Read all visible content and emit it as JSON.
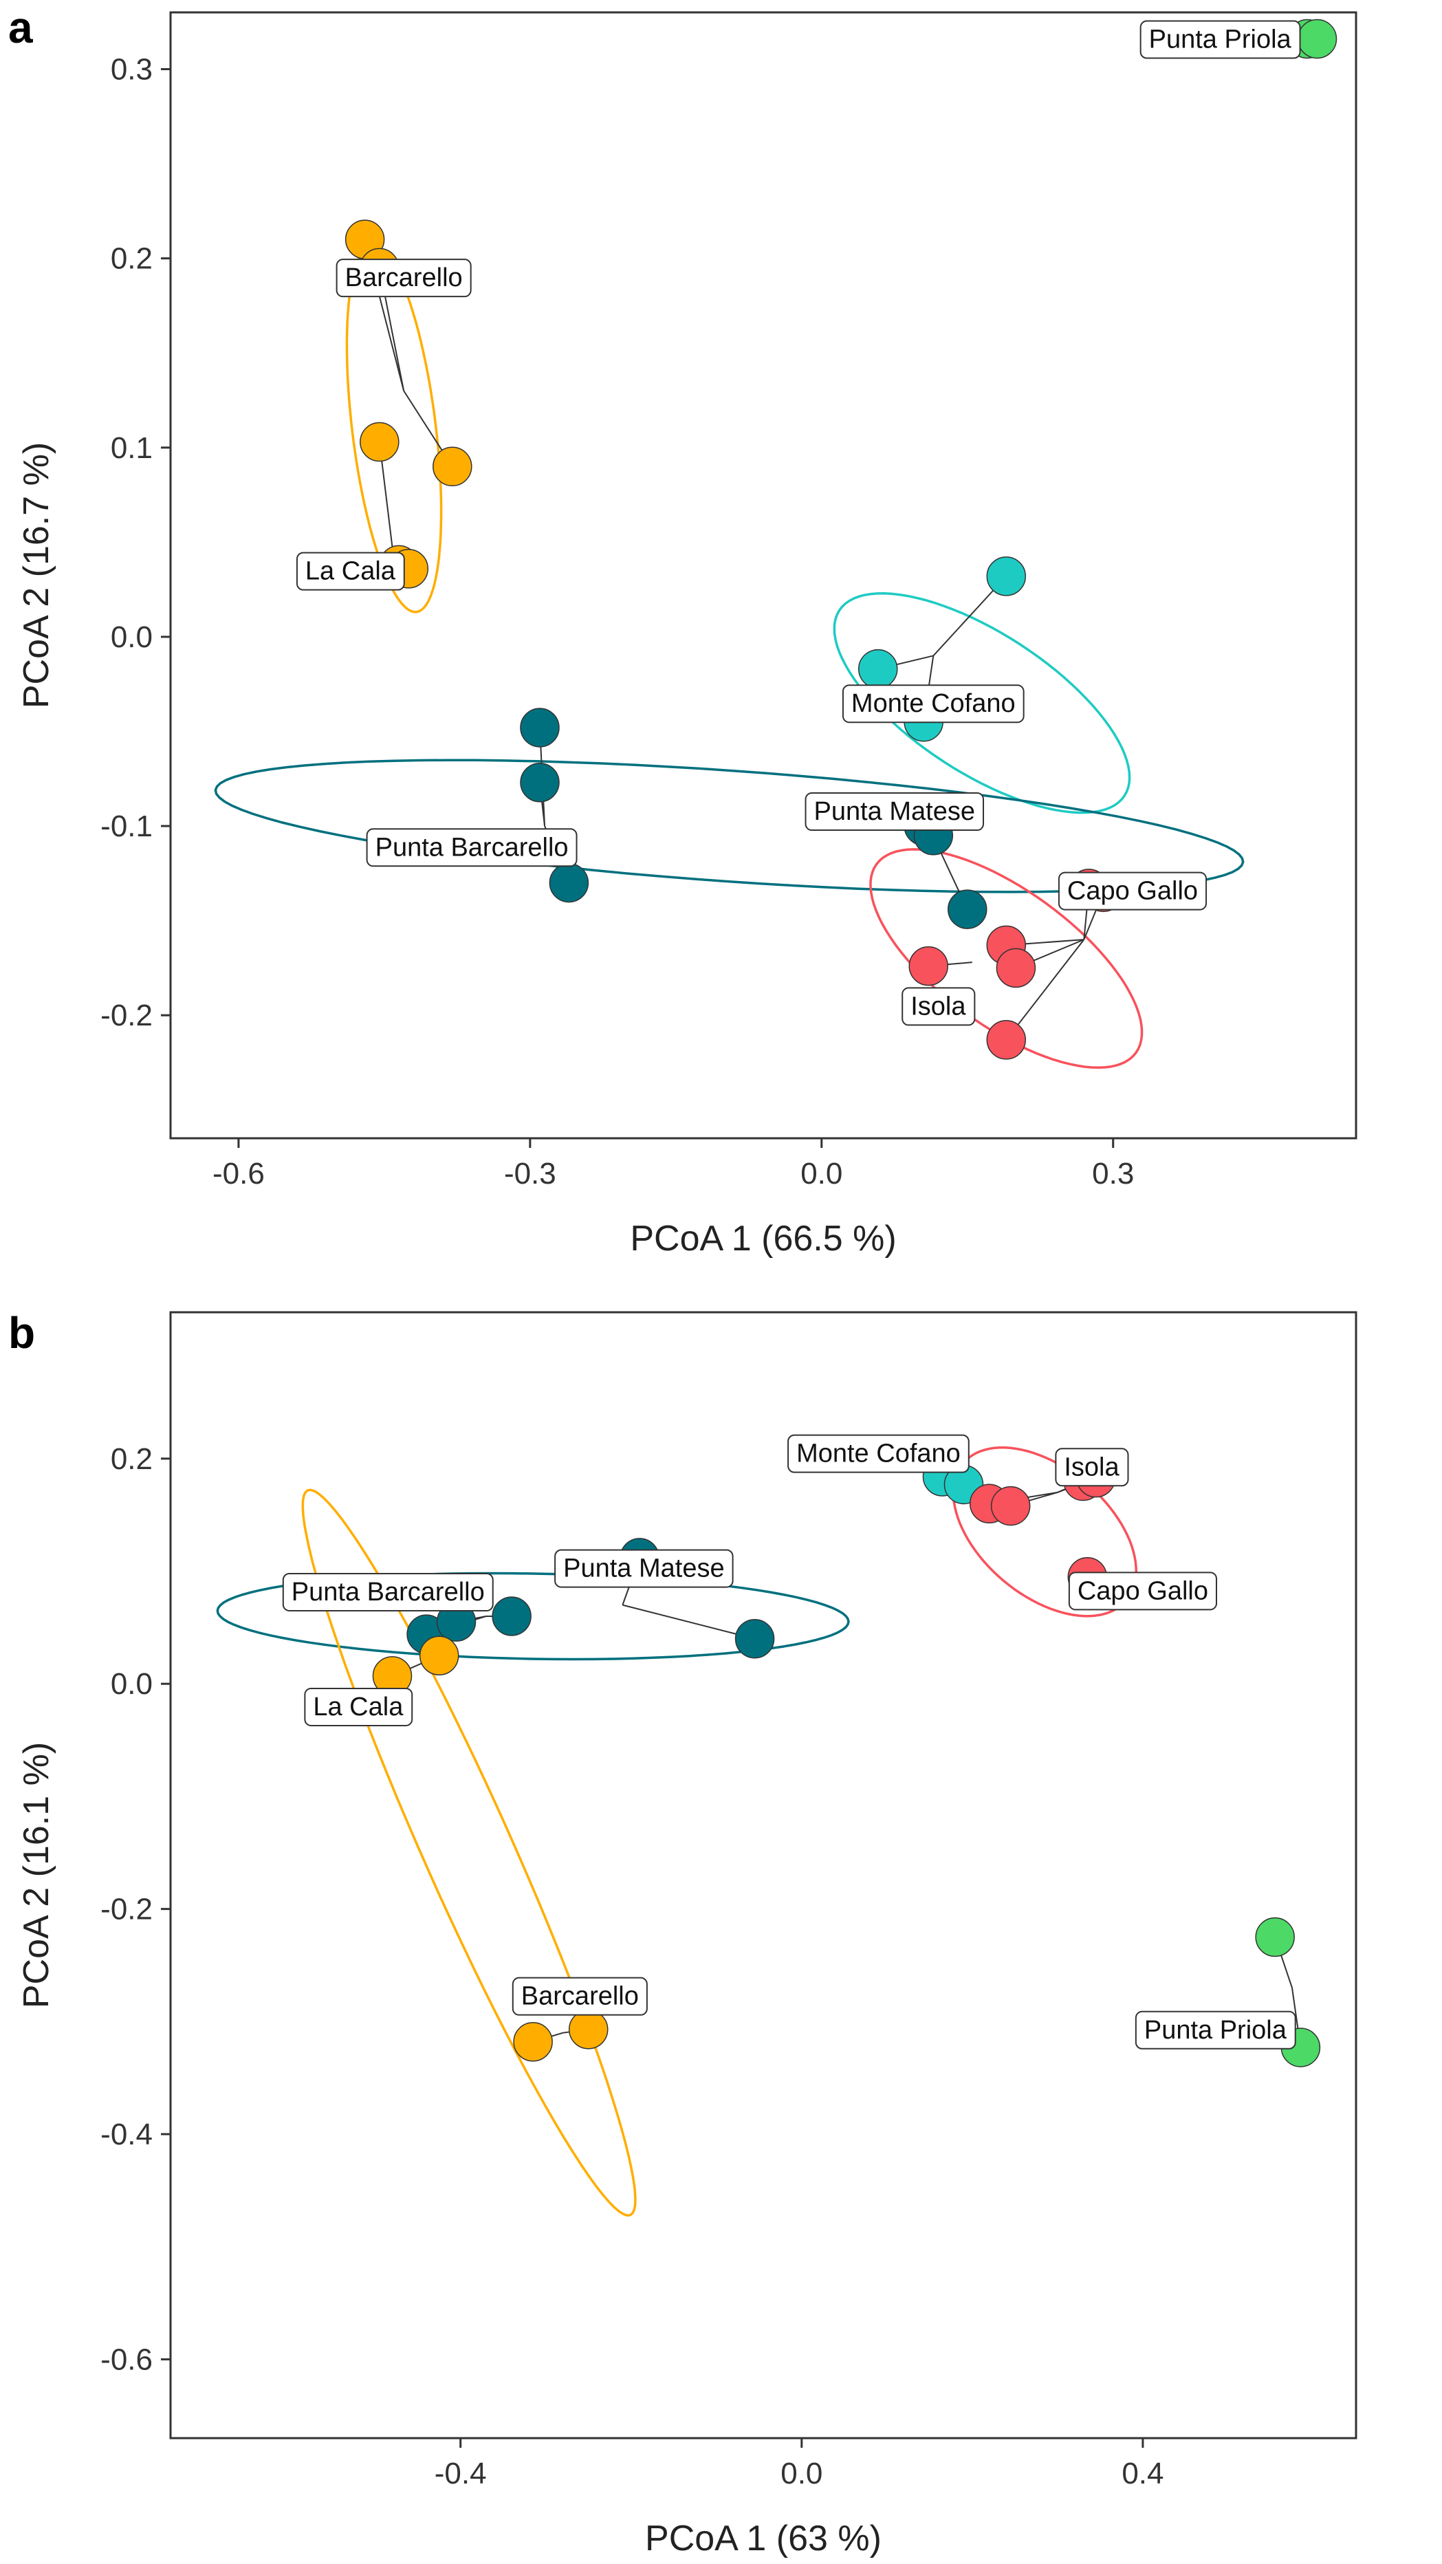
{
  "chart_data": [
    {
      "type": "scatter",
      "panel": "a",
      "xlabel": "PCoA 1 (66.5 %)",
      "ylabel": "PCoA 2 (16.7 %)",
      "xlim": [
        -0.67,
        0.55
      ],
      "ylim": [
        -0.265,
        0.33
      ],
      "xticks": [
        -0.6,
        -0.3,
        0.0,
        0.3
      ],
      "xtick_labels": [
        "-0.6",
        "-0.3",
        "0.0",
        "0.3"
      ],
      "yticks": [
        0.3,
        0.2,
        0.1,
        0.0,
        -0.1,
        -0.2
      ],
      "ytick_labels": [
        "0.3",
        "0.2",
        "0.1",
        "0.0",
        "-0.1",
        "-0.2"
      ],
      "sites": [
        {
          "name": "Barcarello",
          "color": "#FFAE00",
          "centroid": [
            -0.43,
            0.13
          ],
          "points": [
            [
              -0.47,
              0.21
            ],
            [
              -0.455,
              0.195
            ],
            [
              -0.38,
              0.09
            ]
          ],
          "label_at": [
            -0.43,
            0.19
          ],
          "ellipse": {
            "cx": -0.44,
            "cy": 0.11,
            "rx": 0.19,
            "ry": 0.043,
            "angle_deg": -83
          }
        },
        {
          "name": "La Cala",
          "color": "#FFAE00",
          "centroid": [
            -0.44,
            0.04
          ],
          "points": [
            [
              -0.455,
              0.103
            ],
            [
              -0.435,
              0.038
            ],
            [
              -0.425,
              0.036
            ]
          ],
          "label_at": [
            -0.485,
            0.035
          ],
          "ellipse": null
        },
        {
          "name": "Monte Cofano",
          "color": "#1ECBC3",
          "centroid": [
            0.115,
            -0.01
          ],
          "points": [
            [
              0.19,
              0.032
            ],
            [
              0.058,
              -0.017
            ],
            [
              0.105,
              -0.045
            ]
          ],
          "label_at": [
            0.115,
            -0.035
          ],
          "ellipse": {
            "cx": 0.165,
            "cy": -0.035,
            "rx": 0.175,
            "ry": 0.072,
            "angle_deg": -33
          }
        },
        {
          "name": "Punta Matese",
          "color": "#00707E",
          "centroid": [
            0.11,
            -0.1
          ],
          "points": [
            [
              0.105,
              -0.1
            ],
            [
              0.115,
              -0.105
            ],
            [
              0.15,
              -0.144
            ]
          ],
          "label_at": [
            0.075,
            -0.092
          ],
          "ellipse": null
        },
        {
          "name": "Punta Barcarello",
          "color": "#00707E",
          "centroid": [
            -0.285,
            -0.1
          ],
          "points": [
            [
              -0.29,
              -0.048
            ],
            [
              -0.29,
              -0.077
            ],
            [
              -0.26,
              -0.13
            ]
          ],
          "label_at": [
            -0.36,
            -0.111
          ],
          "ellipse": {
            "cx": -0.095,
            "cy": -0.1,
            "rx": 0.53,
            "ry": 0.057,
            "angle_deg": -4
          }
        },
        {
          "name": "Capo Gallo",
          "color": "#F8525C",
          "centroid": [
            0.27,
            -0.16
          ],
          "points": [
            [
              0.275,
              -0.133
            ],
            [
              0.29,
              -0.135
            ],
            [
              0.19,
              -0.163
            ],
            [
              0.2,
              -0.175
            ],
            [
              0.19,
              -0.213
            ]
          ],
          "label_at": [
            0.32,
            -0.134
          ],
          "ellipse": {
            "cx": 0.19,
            "cy": -0.17,
            "rx": 0.165,
            "ry": 0.07,
            "angle_deg": -36
          }
        },
        {
          "name": "Isola",
          "color": "#F8525C",
          "centroid": [
            0.155,
            -0.172
          ],
          "points": [
            [
              0.11,
              -0.174
            ]
          ],
          "label_at": [
            0.12,
            -0.195
          ],
          "ellipse": null
        },
        {
          "name": "Punta Priola",
          "color": "#4CD966",
          "centroid": [
            0.5,
            0.316
          ],
          "points": [
            [
              0.5,
              0.316
            ],
            [
              0.51,
              0.316
            ]
          ],
          "label_at": [
            0.41,
            0.316
          ],
          "ellipse": null
        }
      ]
    },
    {
      "type": "scatter",
      "panel": "b",
      "xlabel": "PCoA 1 (63 %)",
      "ylabel": "PCoA 2 (16.1 %)",
      "xlim": [
        -0.74,
        0.65
      ],
      "ylim": [
        -0.67,
        0.33
      ],
      "xticks": [
        -0.4,
        0.0,
        0.4
      ],
      "xtick_labels": [
        "-0.4",
        "0.0",
        "0.4"
      ],
      "yticks": [
        0.2,
        0.0,
        -0.2,
        -0.4,
        -0.6
      ],
      "ytick_labels": [
        "0.2",
        "0.0",
        "-0.2",
        "-0.4",
        "-0.6"
      ],
      "sites": [
        {
          "name": "Monte Cofano",
          "color": "#1ECBC3",
          "centroid": [
            0.175,
            0.18
          ],
          "points": [
            [
              0.165,
              0.184
            ],
            [
              0.19,
              0.177
            ]
          ],
          "label_at": [
            0.09,
            0.205
          ],
          "ellipse": null
        },
        {
          "name": "Isola",
          "color": "#F8525C",
          "centroid": [
            0.3,
            0.17
          ],
          "points": [
            [
              0.33,
              0.18
            ],
            [
              0.345,
              0.183
            ],
            [
              0.22,
              0.16
            ],
            [
              0.245,
              0.158
            ]
          ],
          "label_at": [
            0.34,
            0.193
          ],
          "ellipse": {
            "cx": 0.285,
            "cy": 0.135,
            "rx": 0.125,
            "ry": 0.075,
            "angle_deg": -40
          }
        },
        {
          "name": "Capo Gallo",
          "color": "#F8525C",
          "centroid": [
            0.33,
            0.1
          ],
          "points": [
            [
              0.335,
              0.095
            ]
          ],
          "label_at": [
            0.4,
            0.083
          ],
          "ellipse": null
        },
        {
          "name": "Punta Matese",
          "color": "#00707E",
          "centroid": [
            -0.21,
            0.07
          ],
          "points": [
            [
              -0.19,
              0.112
            ],
            [
              -0.055,
              0.04
            ]
          ],
          "label_at": [
            -0.185,
            0.103
          ],
          "ellipse": {
            "cx": -0.315,
            "cy": 0.06,
            "rx": 0.37,
            "ry": 0.05,
            "angle_deg": -1
          }
        },
        {
          "name": "Punta Barcarello",
          "color": "#00707E",
          "centroid": [
            -0.37,
            0.06
          ],
          "points": [
            [
              -0.44,
              0.044
            ],
            [
              -0.405,
              0.055
            ],
            [
              -0.34,
              0.06
            ]
          ],
          "label_at": [
            -0.485,
            0.082
          ],
          "ellipse": null
        },
        {
          "name": "La Cala",
          "color": "#FFAE00",
          "centroid": [
            -0.47,
            0.01
          ],
          "points": [
            [
              -0.48,
              0.007
            ],
            [
              -0.425,
              0.025
            ]
          ],
          "label_at": [
            -0.52,
            -0.02
          ],
          "ellipse": {
            "cx": -0.39,
            "cy": -0.15,
            "rx": 0.465,
            "ry": 0.052,
            "angle_deg": -66
          }
        },
        {
          "name": "Barcarello",
          "color": "#FFAE00",
          "centroid": [
            -0.28,
            -0.31
          ],
          "points": [
            [
              -0.315,
              -0.318
            ],
            [
              -0.25,
              -0.307
            ]
          ],
          "label_at": [
            -0.26,
            -0.277
          ],
          "ellipse": null
        },
        {
          "name": "Punta Priola",
          "color": "#4CD966",
          "centroid": [
            0.575,
            -0.27
          ],
          "points": [
            [
              0.555,
              -0.225
            ],
            [
              0.585,
              -0.323
            ]
          ],
          "label_at": [
            0.485,
            -0.307
          ],
          "ellipse": null
        }
      ]
    }
  ]
}
